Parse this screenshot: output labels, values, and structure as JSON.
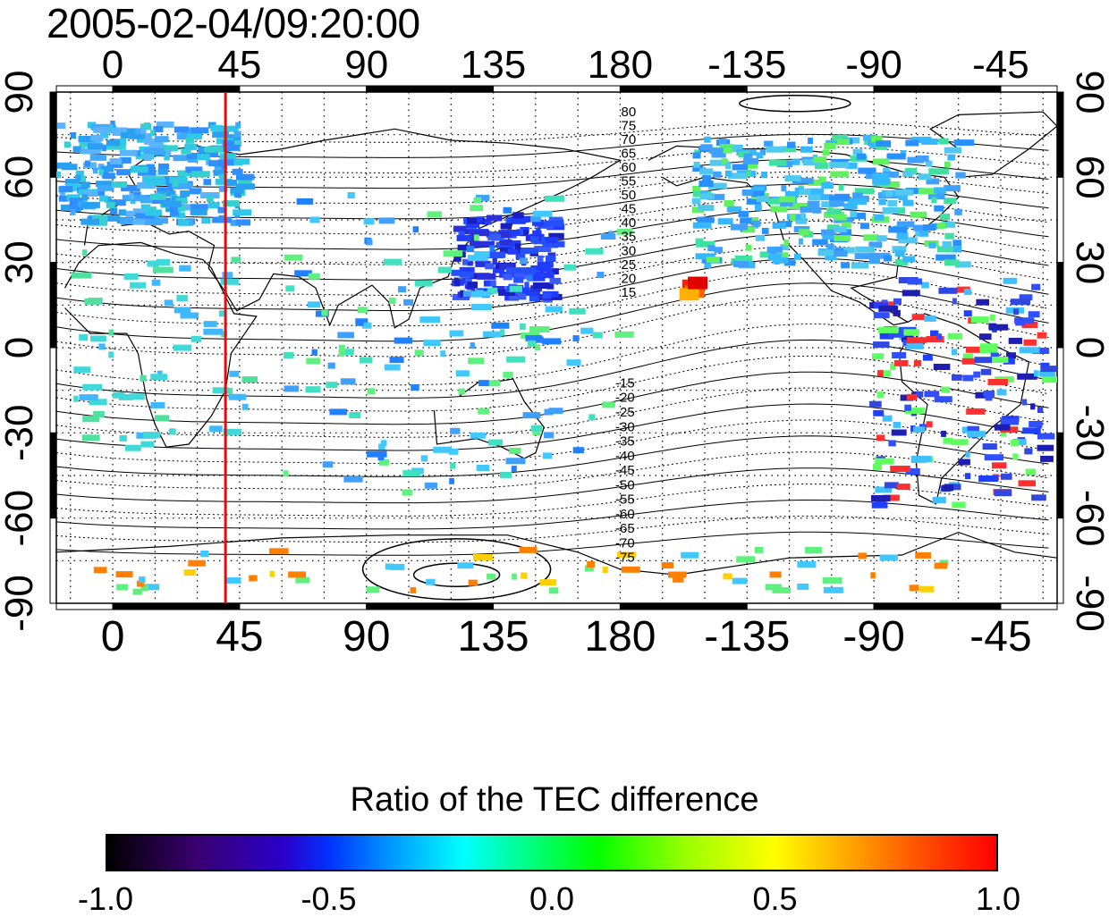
{
  "timestamp": "2005-02-04/09:20:00",
  "map": {
    "top_lon_ticks": [
      "0",
      "45",
      "90",
      "135",
      "180",
      "-135",
      "-90",
      "-45"
    ],
    "bottom_lon_ticks": [
      "0",
      "45",
      "90",
      "135",
      "180",
      "-135",
      "-90",
      "-45"
    ],
    "lon_tick_values": [
      0,
      45,
      90,
      135,
      180,
      225,
      270,
      315
    ],
    "left_lat_ticks": [
      "90",
      "60",
      "30",
      "0",
      "-30",
      "-60",
      "-90"
    ],
    "right_lat_ticks": [
      "90",
      "60",
      "30",
      "0",
      "-30",
      "-60",
      "-90"
    ],
    "lat_tick_values": [
      90,
      60,
      30,
      0,
      -30,
      -60,
      -90
    ],
    "lon_range": [
      -20,
      335
    ],
    "lat_range": [
      -90,
      90
    ],
    "marker_longitude": 40,
    "marker_color": "#ff0000",
    "contour_labels_north": [
      "80",
      "75",
      "70",
      "65",
      "60",
      "55",
      "50",
      "45",
      "40",
      "35",
      "30",
      "25",
      "20",
      "15"
    ],
    "contour_labels_south": [
      "-15",
      "-20",
      "-25",
      "-30",
      "-35",
      "-40",
      "-45",
      "-50",
      "-55",
      "-60",
      "-65",
      "-70",
      "-75"
    ],
    "grid": "dotted"
  },
  "colorbar": {
    "title": "Ratio of the TEC difference",
    "labels": [
      "-1.0",
      "-0.5",
      "0.0",
      "0.5",
      "1.0"
    ],
    "values": [
      -1.0,
      -0.5,
      0.0,
      0.5,
      1.0
    ],
    "range": [
      -1.0,
      1.0
    ],
    "colors": [
      "#000000",
      "#2a00cc",
      "#00ffff",
      "#00ff00",
      "#ffff00",
      "#ff0000"
    ]
  }
}
